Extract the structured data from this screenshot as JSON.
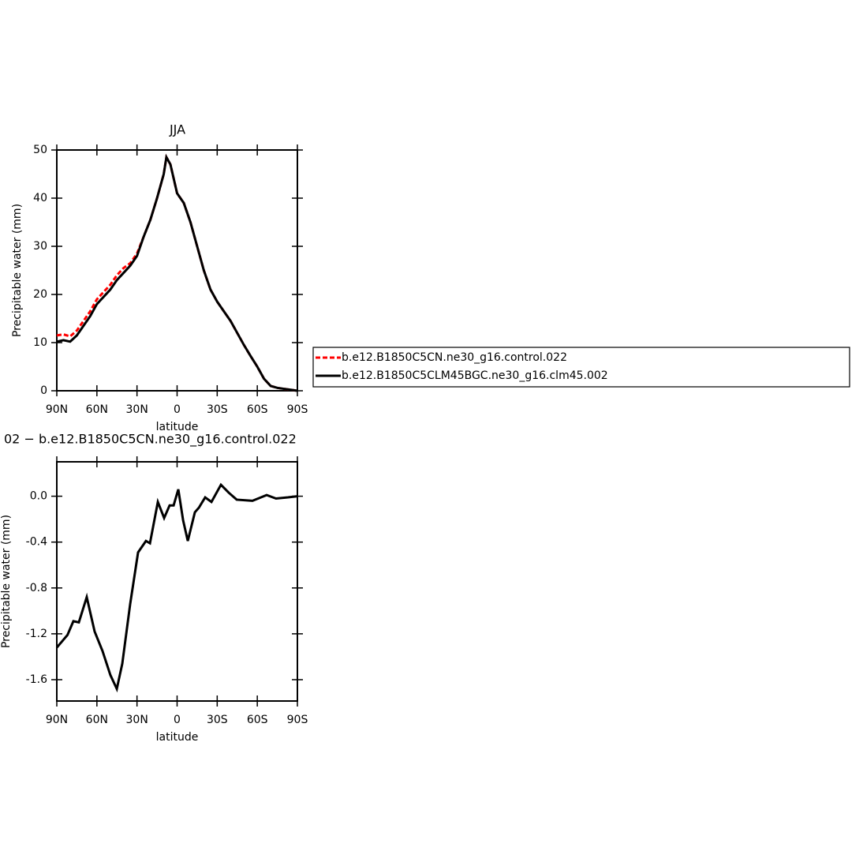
{
  "chart_data": [
    {
      "type": "line",
      "title": "JJA",
      "x_label": "latitude",
      "y_label": "Precipitable water (mm)",
      "x": [
        90,
        85,
        80,
        75,
        70,
        65,
        60,
        55,
        50,
        45,
        40,
        35,
        30,
        25,
        20,
        15,
        10,
        8,
        5,
        0,
        -5,
        -10,
        -15,
        -20,
        -25,
        -30,
        -35,
        -40,
        -45,
        -50,
        -55,
        -60,
        -65,
        -70,
        -75,
        -80,
        -85,
        -90
      ],
      "series": [
        {
          "name": "b.e12.B1850C5CN.ne30_g16.control.022",
          "color": "#ff0000",
          "line_style": "dashed",
          "values": [
            11.5,
            11.7,
            11.3,
            12.5,
            14.5,
            16.5,
            19,
            20.5,
            22,
            24,
            25.5,
            26.5,
            28.5,
            32,
            35.5,
            40,
            45,
            48.5,
            47,
            41,
            39,
            35,
            30,
            25,
            21,
            18.5,
            16.5,
            14.5,
            12,
            9.5,
            7.2,
            5,
            2.5,
            1,
            0.6,
            0.4,
            0.2,
            0
          ]
        },
        {
          "name": "b.e12.B1850C5CLM45BGC.ne30_g16.clm45.002",
          "color": "#000000",
          "line_style": "solid",
          "values": [
            10.2,
            10.5,
            10.2,
            11.5,
            13.5,
            15.5,
            18,
            19.5,
            21,
            23,
            24.5,
            26,
            28,
            32,
            35.5,
            40,
            45,
            48.5,
            47,
            41,
            39,
            35,
            30,
            25,
            21,
            18.5,
            16.5,
            14.5,
            12,
            9.5,
            7.2,
            5,
            2.5,
            1,
            0.6,
            0.4,
            0.2,
            0
          ]
        }
      ],
      "xlim": [
        90,
        -90
      ],
      "xticks": [
        {
          "value": 90,
          "label": "90N"
        },
        {
          "value": 60,
          "label": "60N"
        },
        {
          "value": 30,
          "label": "30N"
        },
        0,
        {
          "value": -30,
          "label": "30S"
        },
        {
          "value": -60,
          "label": "60S"
        },
        {
          "value": -90,
          "label": "90S"
        }
      ],
      "ylim": [
        0,
        50
      ],
      "yticks": [
        0,
        10,
        20,
        30,
        40,
        50
      ],
      "legend": "outside-right"
    },
    {
      "type": "line",
      "title": "02 − b.e12.B1850C5CN.ne30_g16.control.022",
      "x_label": "latitude",
      "y_label": "Precipitable water (mm)",
      "x": [
        90,
        82,
        77.6,
        73.5,
        67.6,
        61.7,
        55.8,
        49.9,
        45.1,
        41,
        35.1,
        29.2,
        23.3,
        20.3,
        14.4,
        9.7,
        5.6,
        2.6,
        -0.9,
        -4.5,
        -8,
        -13.3,
        -16.3,
        -21,
        -25.7,
        -32.8,
        -38.7,
        -44.6,
        -56.4,
        -67,
        -74,
        -83,
        -90
      ],
      "series": [
        {
          "color": "#000000",
          "line_style": "solid",
          "values": [
            -1.32,
            -1.21,
            -1.09,
            -1.1,
            -0.88,
            -1.18,
            -1.35,
            -1.56,
            -1.68,
            -1.46,
            -0.94,
            -0.49,
            -0.39,
            -0.41,
            -0.05,
            -0.19,
            -0.08,
            -0.08,
            0.06,
            -0.21,
            -0.39,
            -0.14,
            -0.1,
            -0.01,
            -0.05,
            0.1,
            0.03,
            -0.03,
            -0.04,
            0.01,
            -0.02,
            -0.01,
            0
          ]
        }
      ],
      "xlim": [
        90,
        -90
      ],
      "xticks": [
        {
          "value": 90,
          "label": "90N"
        },
        {
          "value": 60,
          "label": "60N"
        },
        {
          "value": 30,
          "label": "30N"
        },
        0,
        {
          "value": -30,
          "label": "30S"
        },
        {
          "value": -60,
          "label": "60S"
        },
        {
          "value": -90,
          "label": "90S"
        }
      ],
      "ylim": [
        -1.786,
        0.3
      ],
      "yticks": [
        {
          "value": 0,
          "label": "0.0"
        },
        {
          "value": -0.4,
          "label": "-0.4"
        },
        {
          "value": -0.8,
          "label": "-0.8"
        },
        {
          "value": -1.2,
          "label": "-1.2"
        },
        {
          "value": -1.6,
          "label": "-1.6"
        }
      ]
    }
  ]
}
